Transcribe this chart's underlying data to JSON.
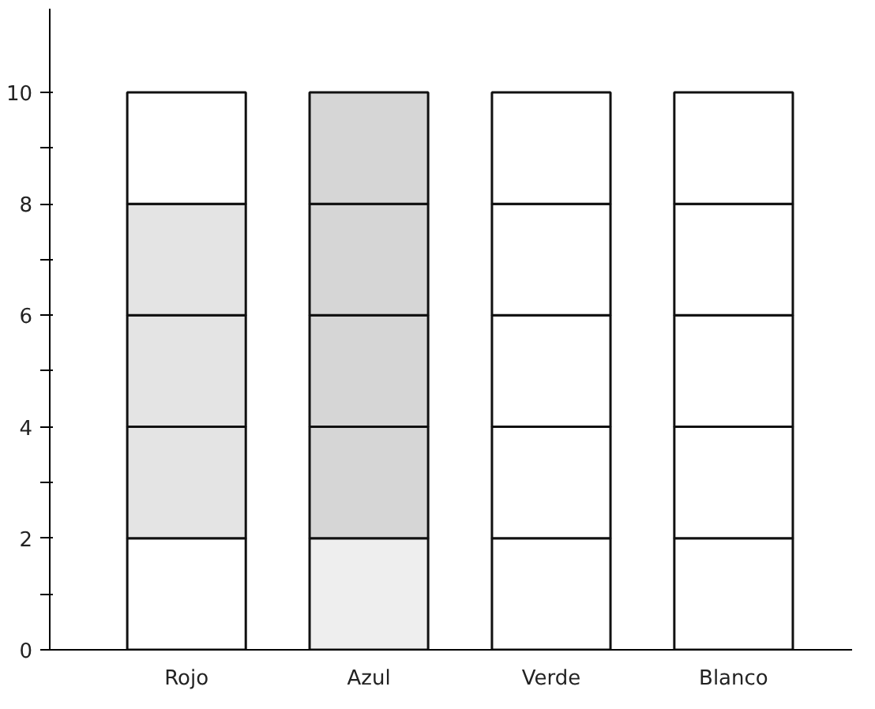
{
  "chart_data": {
    "type": "bar",
    "stacked": true,
    "categories": [
      "Rojo",
      "Azul",
      "Verde",
      "Blanco"
    ],
    "series": [
      {
        "colors": [
          "#ffffff",
          "#eeeeee",
          "#ffffff",
          "#ffffff"
        ],
        "values": [
          2,
          2,
          2,
          2
        ]
      },
      {
        "colors": [
          "#e4e4e4",
          "#d6d6d6",
          "#ffffff",
          "#ffffff"
        ],
        "values": [
          2,
          2,
          2,
          2
        ]
      },
      {
        "colors": [
          "#e4e4e4",
          "#d6d6d6",
          "#ffffff",
          "#ffffff"
        ],
        "values": [
          2,
          2,
          2,
          2
        ]
      },
      {
        "colors": [
          "#e4e4e4",
          "#d6d6d6",
          "#ffffff",
          "#ffffff"
        ],
        "values": [
          2,
          2,
          2,
          2
        ]
      },
      {
        "colors": [
          "#ffffff",
          "#d6d6d6",
          "#ffffff",
          "#ffffff"
        ],
        "values": [
          2,
          2,
          2,
          2
        ]
      }
    ],
    "ylim": [
      0,
      11.5
    ],
    "yticks": [
      0,
      {
        "value": 1,
        "label": null
      },
      2,
      {
        "value": 3,
        "label": null
      },
      4,
      {
        "value": 5,
        "label": null
      },
      6,
      {
        "value": 7,
        "label": null
      },
      8,
      {
        "value": 9,
        "label": null
      },
      10
    ],
    "grid": false
  }
}
